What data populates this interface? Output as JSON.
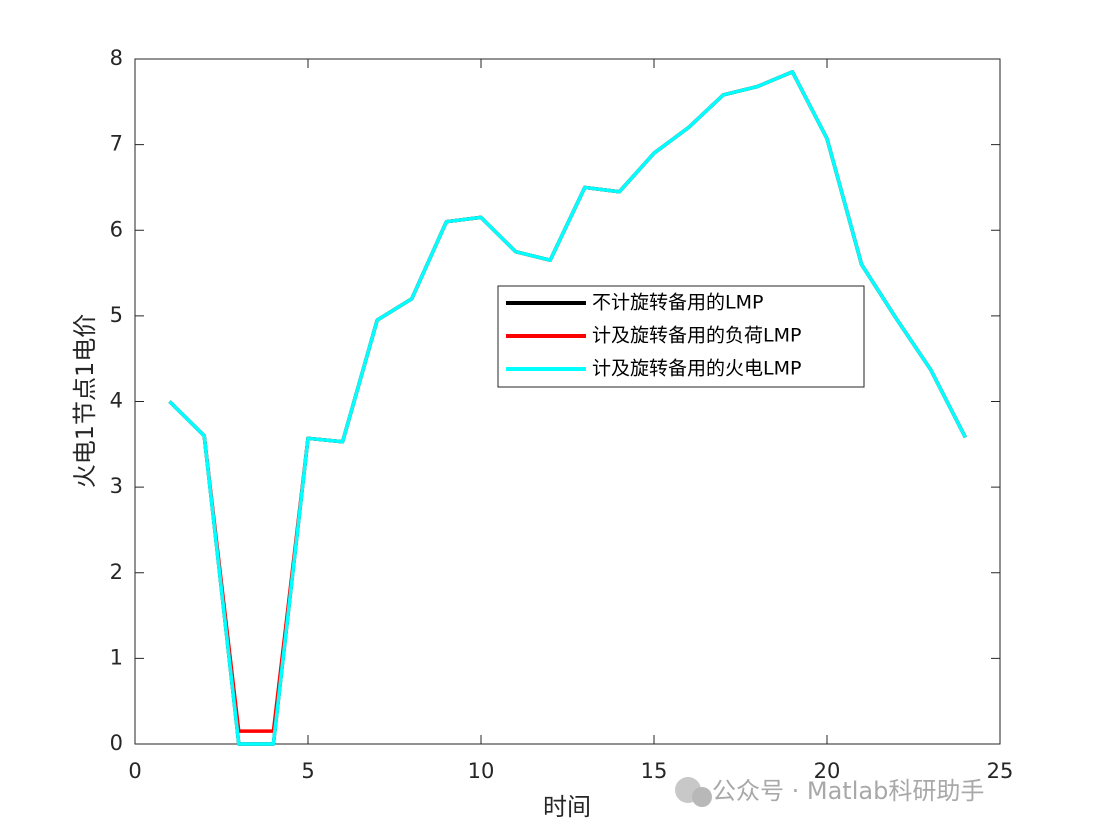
{
  "chart_data": {
    "type": "line",
    "xlabel": "时间",
    "ylabel": "火电1节点1电价",
    "x": [
      1,
      2,
      3,
      4,
      5,
      6,
      7,
      8,
      9,
      10,
      11,
      12,
      13,
      14,
      15,
      16,
      17,
      18,
      19,
      20,
      21,
      22,
      23,
      24
    ],
    "series": [
      {
        "name": "不计旋转备用的LMP",
        "color": "#000000",
        "values": [
          4.0,
          3.6,
          0,
          0,
          3.57,
          3.53,
          4.95,
          5.2,
          6.1,
          6.15,
          5.75,
          5.65,
          6.5,
          6.45,
          6.9,
          7.2,
          7.58,
          7.68,
          7.85,
          7.07,
          5.6,
          4.97,
          4.37,
          3.58
        ]
      },
      {
        "name": "计及旋转备用的负荷LMP",
        "color": "#ff0000",
        "values": [
          4.0,
          3.6,
          0.15,
          0.15,
          3.57,
          3.53,
          4.95,
          5.2,
          6.1,
          6.15,
          5.75,
          5.65,
          6.5,
          6.45,
          6.9,
          7.2,
          7.58,
          7.68,
          7.85,
          7.07,
          5.6,
          4.97,
          4.37,
          3.58
        ]
      },
      {
        "name": "计及旋转备用的火电LMP",
        "color": "#00ffff",
        "values": [
          4.0,
          3.6,
          0,
          0,
          3.57,
          3.53,
          4.95,
          5.2,
          6.1,
          6.15,
          5.75,
          5.65,
          6.5,
          6.45,
          6.9,
          7.2,
          7.58,
          7.68,
          7.85,
          7.07,
          5.6,
          4.97,
          4.37,
          3.58
        ]
      }
    ],
    "xlim": [
      0,
      25
    ],
    "xticks": [
      0,
      5,
      10,
      15,
      20,
      25
    ],
    "ylim": [
      0,
      8
    ],
    "yticks": [
      0,
      1,
      2,
      3,
      4,
      5,
      6,
      7,
      8
    ],
    "grid": false,
    "watermark": "公众号 · Matlab科研助手"
  }
}
